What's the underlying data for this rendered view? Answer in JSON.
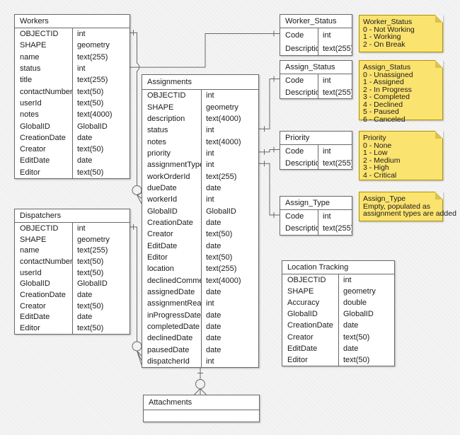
{
  "colors": {
    "background": "#F4F4F4",
    "table_fill": "#FFFFFF",
    "table_border": "#696969",
    "note_fill": "#FBE36F",
    "note_border": "#B09500",
    "connector": "#696969",
    "text": "#1A1A1A"
  },
  "tables": [
    {
      "id": "workers",
      "title": "Workers",
      "fields": [
        [
          "OBJECTID",
          "int"
        ],
        [
          "SHAPE",
          "geometry"
        ],
        [
          "name",
          "text(255)"
        ],
        [
          "status",
          "int"
        ],
        [
          "title",
          "text(255)"
        ],
        [
          "contactNumber",
          "text(50)"
        ],
        [
          "userId",
          "text(50)"
        ],
        [
          "notes",
          "text(4000)"
        ],
        [
          "GlobalID",
          "GlobalID"
        ],
        [
          "CreationDate",
          "date"
        ],
        [
          "Creator",
          "text(50)"
        ],
        [
          "EditDate",
          "date"
        ],
        [
          "Editor",
          "text(50)"
        ]
      ]
    },
    {
      "id": "dispatchers",
      "title": "Dispatchers",
      "fields": [
        [
          "OBJECTID",
          "int"
        ],
        [
          "SHAPE",
          "geometry"
        ],
        [
          "name",
          "text(255)"
        ],
        [
          "contactNumber",
          "text(50)"
        ],
        [
          "userId",
          "text(50)"
        ],
        [
          "GlobalID",
          "GlobalID"
        ],
        [
          "CreationDate",
          "date"
        ],
        [
          "Creator",
          "text(50)"
        ],
        [
          "EditDate",
          "date"
        ],
        [
          "Editor",
          "text(50)"
        ]
      ]
    },
    {
      "id": "assignments",
      "title": "Assignments",
      "fields": [
        [
          "OBJECTID",
          "int"
        ],
        [
          "SHAPE",
          "geometry"
        ],
        [
          "description",
          "text(4000)"
        ],
        [
          "status",
          "int"
        ],
        [
          "notes",
          "text(4000)"
        ],
        [
          "priority",
          "int"
        ],
        [
          "assignmentType",
          "int"
        ],
        [
          "workOrderId",
          "text(255)"
        ],
        [
          "dueDate",
          "date"
        ],
        [
          "workerId",
          "int"
        ],
        [
          "GlobalID",
          "GlobalID"
        ],
        [
          "CreationDate",
          "date"
        ],
        [
          "Creator",
          "text(50)"
        ],
        [
          "EditDate",
          "date"
        ],
        [
          "Editor",
          "text(50)"
        ],
        [
          "location",
          "text(255)"
        ],
        [
          "declinedComment",
          "text(4000)"
        ],
        [
          "assignedDate",
          "date"
        ],
        [
          "assignmentRead",
          "int"
        ],
        [
          "inProgressDate",
          "date"
        ],
        [
          "completedDate",
          "date"
        ],
        [
          "declinedDate",
          "date"
        ],
        [
          "pausedDate",
          "date"
        ],
        [
          "dispatcherId",
          "int"
        ]
      ]
    },
    {
      "id": "worker_status",
      "title": "Worker_Status",
      "fields": [
        [
          "Code",
          "int"
        ],
        [
          "Description",
          "text(255)"
        ]
      ]
    },
    {
      "id": "assign_status",
      "title": "Assign_Status",
      "fields": [
        [
          "Code",
          "int"
        ],
        [
          "Description",
          "text(255)"
        ]
      ]
    },
    {
      "id": "priority",
      "title": "Priority",
      "fields": [
        [
          "Code",
          "int"
        ],
        [
          "Description",
          "text(255)"
        ]
      ]
    },
    {
      "id": "assign_type",
      "title": "Assign_Type",
      "fields": [
        [
          "Code",
          "int"
        ],
        [
          "Description",
          "text(255)"
        ]
      ]
    },
    {
      "id": "location_tracking",
      "title": "Location Tracking",
      "fields": [
        [
          "OBJECTID",
          "int"
        ],
        [
          "SHAPE",
          "geometry"
        ],
        [
          "Accuracy",
          "double"
        ],
        [
          "GlobalID",
          "GlobalID"
        ],
        [
          "CreationDate",
          "date"
        ],
        [
          "Creator",
          "text(50)"
        ],
        [
          "EditDate",
          "date"
        ],
        [
          "Editor",
          "text(50)"
        ]
      ]
    },
    {
      "id": "attachments",
      "title": "Attachments",
      "fields": []
    }
  ],
  "notes": [
    {
      "id": "worker_status_note",
      "lines": [
        "Worker_Status",
        "0 - Not Working",
        "1 - Working",
        "2 - On Break"
      ]
    },
    {
      "id": "assign_status_note",
      "lines": [
        "Assign_Status",
        "0 - Unassigned",
        "1 - Assigned",
        "2 - In Progress",
        "3 - Completed",
        "4 - Declined",
        "5 - Paused",
        "6 - Canceled"
      ]
    },
    {
      "id": "priority_note",
      "lines": [
        "Priority",
        "0 - None",
        "1 - Low",
        "2 - Medium",
        "3 - High",
        "4 - Critical"
      ]
    },
    {
      "id": "assign_type_note",
      "lines": [
        "Assign_Type",
        "Empty, populated as",
        "assignment types are added"
      ]
    }
  ],
  "connectors": [
    {
      "from": "Workers.OBJECTID",
      "to": "Assignments.workerId",
      "from_end": "one",
      "to_end": "zero-or-many"
    },
    {
      "from": "Dispatchers.OBJECTID",
      "to": "Assignments.dispatcherId",
      "from_end": "one",
      "to_end": "zero-or-many"
    },
    {
      "from": "Workers.status",
      "to": "Worker_Status.Code",
      "from_end": "plain",
      "to_end": "one"
    },
    {
      "from": "Assignments.status",
      "to": "Assign_Status.Code",
      "from_end": "one",
      "to_end": "one"
    },
    {
      "from": "Assignments.priority",
      "to": "Priority.Code",
      "from_end": "one",
      "to_end": "one"
    },
    {
      "from": "Assignments.assignmentType",
      "to": "Assign_Type.Code",
      "from_end": "one",
      "to_end": "one"
    },
    {
      "from": "Assignments",
      "to": "Attachments",
      "from_end": "one",
      "to_end": "zero-or-many"
    }
  ]
}
